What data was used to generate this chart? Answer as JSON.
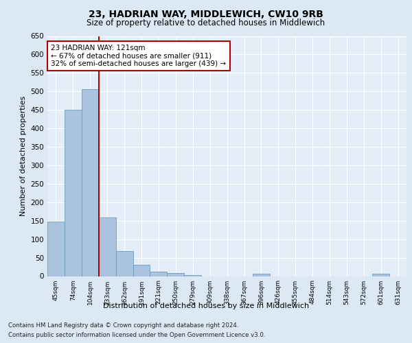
{
  "title": "23, HADRIAN WAY, MIDDLEWICH, CW10 9RB",
  "subtitle": "Size of property relative to detached houses in Middlewich",
  "xlabel": "Distribution of detached houses by size in Middlewich",
  "ylabel": "Number of detached properties",
  "footer_line1": "Contains HM Land Registry data © Crown copyright and database right 2024.",
  "footer_line2": "Contains public sector information licensed under the Open Government Licence v3.0.",
  "bar_labels": [
    "45sqm",
    "74sqm",
    "104sqm",
    "133sqm",
    "162sqm",
    "191sqm",
    "221sqm",
    "250sqm",
    "279sqm",
    "309sqm",
    "338sqm",
    "367sqm",
    "396sqm",
    "426sqm",
    "455sqm",
    "484sqm",
    "514sqm",
    "543sqm",
    "572sqm",
    "601sqm",
    "631sqm"
  ],
  "bar_values": [
    148,
    450,
    507,
    158,
    68,
    30,
    13,
    8,
    3,
    0,
    0,
    0,
    6,
    0,
    0,
    0,
    0,
    0,
    0,
    6,
    0
  ],
  "bar_color": "#aac4df",
  "bar_edge_color": "#6a9cc0",
  "bg_color": "#dce9f5",
  "plot_bg_color": "#e4eef8",
  "grid_color": "#ffffff",
  "vline_x_index": 2,
  "vline_color": "#aa0000",
  "annotation_text": "23 HADRIAN WAY: 121sqm\n← 67% of detached houses are smaller (911)\n32% of semi-detached houses are larger (439) →",
  "annotation_box_edgecolor": "#aa0000",
  "ylim": [
    0,
    650
  ],
  "yticks": [
    0,
    50,
    100,
    150,
    200,
    250,
    300,
    350,
    400,
    450,
    500,
    550,
    600,
    650
  ]
}
